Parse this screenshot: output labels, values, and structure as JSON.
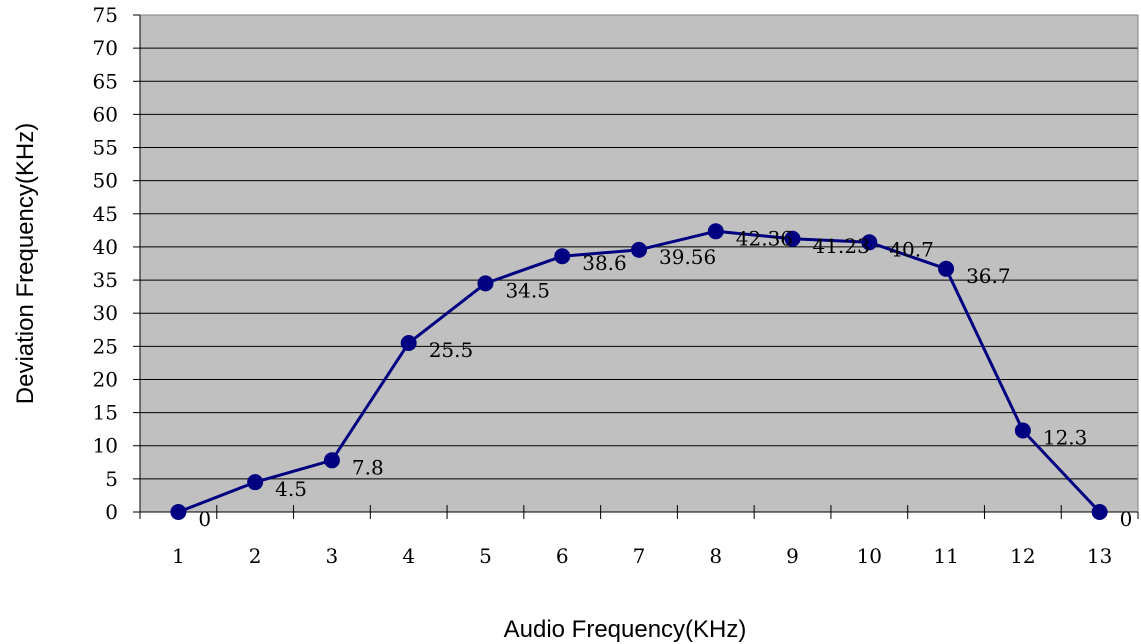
{
  "chart_data": {
    "type": "line",
    "xlabel": "Audio Frequency(KHz)",
    "ylabel": "Deviation Frequency(KHz)",
    "categories": [
      "1",
      "2",
      "3",
      "4",
      "5",
      "6",
      "7",
      "8",
      "9",
      "10",
      "11",
      "12",
      "13"
    ],
    "values": [
      0,
      4.5,
      7.8,
      25.5,
      34.5,
      38.6,
      39.56,
      42.36,
      41.23,
      40.7,
      36.7,
      12.3,
      0
    ],
    "data_labels": [
      "0",
      "4.5",
      "7.8",
      "25.5",
      "34.5",
      "38.6",
      "39.56",
      "42.36",
      "41.23",
      "40.7",
      "36.7",
      "12.3",
      "0"
    ],
    "ylim": [
      0,
      75
    ],
    "y_ticks": [
      "0",
      "5",
      "10",
      "15",
      "20",
      "25",
      "30",
      "35",
      "40",
      "45",
      "50",
      "55",
      "60",
      "65",
      "70",
      "75"
    ],
    "grid": true,
    "legend": "none",
    "colors": {
      "plot_background": "#c0c0c0",
      "line": "#000080",
      "marker": "#000080",
      "gridline": "#000000"
    }
  }
}
